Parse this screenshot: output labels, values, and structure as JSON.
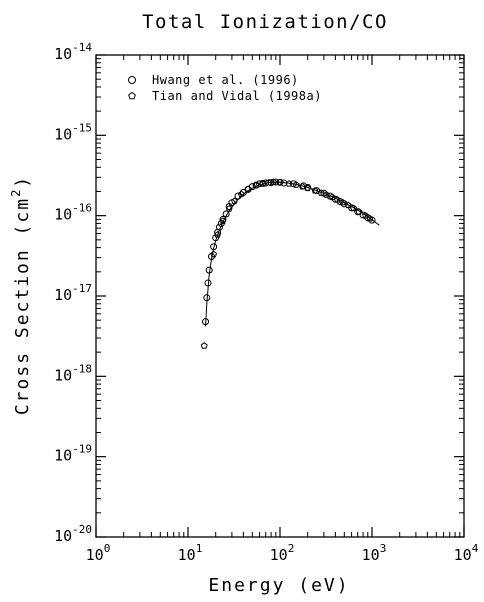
{
  "chart_data": {
    "type": "scatter",
    "title": "Total Ionization/CO",
    "xlabel": "Energy (eV)",
    "ylabel_main": "Cross Section (cm",
    "ylabel_sup": "2",
    "ylabel_close": ")",
    "x_scale": "log",
    "y_scale": "log",
    "xlim": [
      1,
      10000
    ],
    "ylim": [
      1e-20,
      1e-14
    ],
    "x_ticks": [
      {
        "value": 1,
        "base": "10",
        "exp": "0"
      },
      {
        "value": 10,
        "base": "10",
        "exp": "1"
      },
      {
        "value": 100,
        "base": "10",
        "exp": "2"
      },
      {
        "value": 1000,
        "base": "10",
        "exp": "3"
      },
      {
        "value": 10000,
        "base": "10",
        "exp": "4"
      }
    ],
    "y_ticks": [
      {
        "value": 1e-20,
        "base": "10",
        "exp": "-20"
      },
      {
        "value": 1e-19,
        "base": "10",
        "exp": "-19"
      },
      {
        "value": 1e-18,
        "base": "10",
        "exp": "-18"
      },
      {
        "value": 1e-17,
        "base": "10",
        "exp": "-17"
      },
      {
        "value": 1e-16,
        "base": "10",
        "exp": "-16"
      },
      {
        "value": 1e-15,
        "base": "10",
        "exp": "-15"
      },
      {
        "value": 1e-14,
        "base": "10",
        "exp": "-14"
      }
    ],
    "legend_position": "top-left",
    "series": [
      {
        "name": "Hwang et al. (1996)",
        "marker": "circle",
        "x": [
          15.5,
          16.0,
          16.5,
          17.0,
          18.0,
          19.0,
          20.0,
          21.0,
          22.0,
          23.0,
          24.0,
          26.0,
          28.0,
          30.0,
          35.0,
          40.0,
          45.0,
          50.0,
          55.0,
          60.0,
          65.0,
          70.0,
          80.0,
          90.0,
          100.0,
          110.0,
          140.0,
          180.0,
          200.0,
          250.0,
          300.0,
          350.0,
          400.0,
          450.0,
          500.0,
          600.0,
          700.0,
          800.0,
          900.0,
          1000.0
        ],
        "y": [
          4.8e-18,
          9.5e-18,
          1.45e-17,
          2.1e-17,
          3.1e-17,
          4.1e-17,
          5.3e-17,
          6.2e-17,
          7.2e-17,
          8e-17,
          9e-17,
          1.05e-16,
          1.3e-16,
          1.45e-16,
          1.75e-16,
          1.95e-16,
          2.12e-16,
          2.3e-16,
          2.4e-16,
          2.5e-16,
          2.52e-16,
          2.55e-16,
          2.58e-16,
          2.62e-16,
          2.6e-16,
          2.55e-16,
          2.5e-16,
          2.35e-16,
          2.25e-16,
          2.05e-16,
          1.9e-16,
          1.75e-16,
          1.6e-16,
          1.5e-16,
          1.4e-16,
          1.25e-16,
          1.12e-16,
          1.02e-16,
          9.4e-17,
          8.8e-17
        ]
      },
      {
        "name": "Tian and Vidal (1998a)",
        "marker": "pentagon",
        "x": [
          15.0,
          19.0,
          21.0,
          24.0,
          28.0,
          32.0,
          38.0,
          45.0,
          55.0,
          65.0,
          75.0,
          85.0,
          100.0,
          125.0,
          150.0,
          175.0,
          200.0,
          240.0,
          280.0,
          320.0,
          370.0,
          420.0,
          480.0,
          550.0,
          630.0,
          720.0,
          850.0,
          950.0
        ],
        "y": [
          2.4e-18,
          3.3e-17,
          5.8e-17,
          8.6e-17,
          1.22e-16,
          1.52e-16,
          1.85e-16,
          2.15e-16,
          2.38e-16,
          2.5e-16,
          2.58e-16,
          2.62e-16,
          2.6e-16,
          2.5e-16,
          2.42e-16,
          2.3e-16,
          2.2e-16,
          2.05e-16,
          1.92e-16,
          1.82e-16,
          1.7e-16,
          1.58e-16,
          1.46e-16,
          1.35e-16,
          1.24e-16,
          1.12e-16,
          1e-16,
          9.2e-17
        ]
      }
    ],
    "fit_curve": {
      "x": [
        15.5,
        16.0,
        17.0,
        18.0,
        19.0,
        20.0,
        22.0,
        25.0,
        28.0,
        32.0,
        36.0,
        40.0,
        45.0,
        50.0,
        60.0,
        70.0,
        80.0,
        90.0,
        100.0,
        120.0,
        150.0,
        200.0,
        250.0,
        300.0,
        400.0,
        500.0,
        600.0,
        700.0,
        800.0,
        900.0,
        1000.0,
        1100.0,
        1200.0
      ],
      "y": [
        4.2e-18,
        8e-18,
        1.85e-17,
        2.9e-17,
        3.9e-17,
        4.9e-17,
        6.7e-17,
        9.2e-17,
        1.15e-16,
        1.42e-16,
        1.65e-16,
        1.85e-16,
        2.05e-16,
        2.2e-16,
        2.42e-16,
        2.54e-16,
        2.6e-16,
        2.62e-16,
        2.6e-16,
        2.55e-16,
        2.45e-16,
        2.25e-16,
        2.05e-16,
        1.9e-16,
        1.65e-16,
        1.45e-16,
        1.3e-16,
        1.17e-16,
        1.06e-16,
        9.7e-17,
        8.9e-17,
        8.2e-17,
        7.6e-17
      ]
    }
  }
}
